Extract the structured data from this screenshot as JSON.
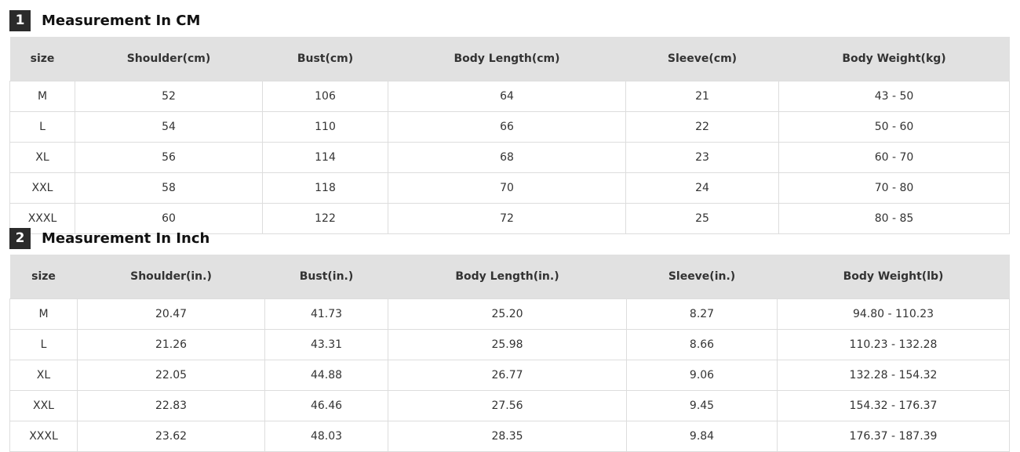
{
  "sections": [
    {
      "number": "1",
      "title": "Measurement In CM",
      "headers": [
        "size",
        "Shoulder(cm)",
        "Bust(cm)",
        "Body Length(cm)",
        "Sleeve(cm)",
        "Body Weight(kg)"
      ],
      "rows": [
        [
          "M",
          "52",
          "106",
          "64",
          "21",
          "43 - 50"
        ],
        [
          "L",
          "54",
          "110",
          "66",
          "22",
          "50 - 60"
        ],
        [
          "XL",
          "56",
          "114",
          "68",
          "23",
          "60 - 70"
        ],
        [
          "XXL",
          "58",
          "118",
          "70",
          "24",
          "70 - 80"
        ],
        [
          "XXXL",
          "60",
          "122",
          "72",
          "25",
          "80 - 85"
        ]
      ]
    },
    {
      "number": "2",
      "title": "Measurement In Inch",
      "headers": [
        "size",
        "Shoulder(in.)",
        "Bust(in.)",
        "Body Length(in.)",
        "Sleeve(in.)",
        "Body Weight(lb)"
      ],
      "rows": [
        [
          "M",
          "20.47",
          "41.73",
          "25.20",
          "8.27",
          "94.80 - 110.23"
        ],
        [
          "L",
          "21.26",
          "43.31",
          "25.98",
          "8.66",
          "110.23 - 132.28"
        ],
        [
          "XL",
          "22.05",
          "44.88",
          "26.77",
          "9.06",
          "132.28 - 154.32"
        ],
        [
          "XXL",
          "22.83",
          "46.46",
          "27.56",
          "9.45",
          "154.32 - 176.37"
        ],
        [
          "XXXL",
          "23.62",
          "48.03",
          "28.35",
          "9.84",
          "176.37 - 187.39"
        ]
      ]
    }
  ]
}
